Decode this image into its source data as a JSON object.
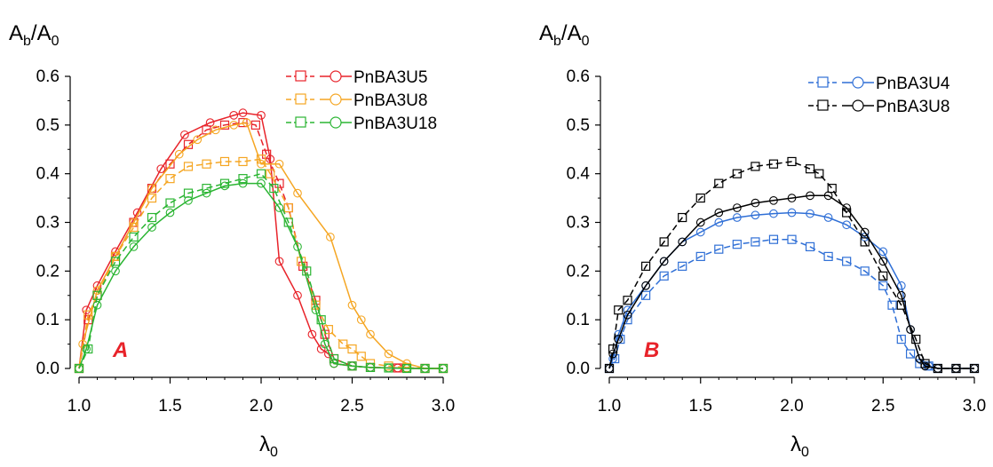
{
  "figure": {
    "panels": [
      "A",
      "B"
    ]
  },
  "chart_data": [
    {
      "type": "line",
      "panel_label": "A",
      "panel_label_color": "#e8232a",
      "ylabel": "A_b/A_0",
      "ylabel_main": "A",
      "ylabel_sub": "b",
      "ylabel_denominator": "A",
      "ylabel_denominator_sub": "0",
      "xlabel": "λ_0",
      "xlabel_main": "λ",
      "xlabel_sub": "0",
      "xlim": [
        1.0,
        3.0
      ],
      "ylim": [
        0.0,
        0.6
      ],
      "xticks": [
        "1.0",
        "1.5",
        "2.0",
        "2.5",
        "3.0"
      ],
      "yticks": [
        "0.0",
        "0.1",
        "0.2",
        "0.3",
        "0.4",
        "0.5",
        "0.6"
      ],
      "grid": false,
      "legend_position": "top-right",
      "series": [
        {
          "name": "PnBA3U5",
          "color": "#e8232a",
          "solid": {
            "x": [
              1.0,
              1.04,
              1.1,
              1.2,
              1.32,
              1.45,
              1.58,
              1.72,
              1.85,
              1.9,
              2.0,
              2.05,
              2.1,
              2.2,
              2.28,
              2.33,
              2.37,
              2.4,
              2.5,
              2.6,
              2.75,
              2.9,
              3.0
            ],
            "y": [
              0.0,
              0.12,
              0.17,
              0.24,
              0.32,
              0.41,
              0.48,
              0.505,
              0.52,
              0.525,
              0.52,
              0.43,
              0.22,
              0.15,
              0.07,
              0.04,
              0.03,
              0.01,
              0.005,
              0.002,
              0.001,
              0.0,
              0.0
            ]
          },
          "dashed": {
            "x": [
              1.0,
              1.05,
              1.1,
              1.2,
              1.3,
              1.4,
              1.5,
              1.6,
              1.7,
              1.8,
              1.9,
              1.97,
              2.03,
              2.1,
              2.15,
              2.23,
              2.3,
              2.35,
              2.4,
              2.5,
              2.6,
              2.75,
              2.9,
              3.0
            ],
            "y": [
              0.0,
              0.1,
              0.15,
              0.23,
              0.3,
              0.37,
              0.42,
              0.46,
              0.49,
              0.5,
              0.505,
              0.5,
              0.44,
              0.38,
              0.33,
              0.21,
              0.14,
              0.07,
              0.02,
              0.005,
              0.002,
              0.001,
              0.0,
              0.0
            ]
          }
        },
        {
          "name": "PnBA3U8",
          "color": "#f5a623",
          "solid": {
            "x": [
              1.0,
              1.02,
              1.1,
              1.2,
              1.3,
              1.4,
              1.55,
              1.65,
              1.75,
              1.85,
              1.92,
              2.0,
              2.1,
              2.2,
              2.38,
              2.5,
              2.55,
              2.6,
              2.7,
              2.8,
              2.9,
              3.0
            ],
            "y": [
              0.0,
              0.05,
              0.16,
              0.23,
              0.3,
              0.37,
              0.44,
              0.47,
              0.49,
              0.5,
              0.505,
              0.42,
              0.42,
              0.36,
              0.27,
              0.13,
              0.1,
              0.07,
              0.03,
              0.01,
              0.0,
              0.0
            ]
          },
          "dashed": {
            "x": [
              1.0,
              1.05,
              1.1,
              1.2,
              1.3,
              1.4,
              1.5,
              1.6,
              1.7,
              1.8,
              1.9,
              2.0,
              2.05,
              2.15,
              2.22,
              2.3,
              2.37,
              2.45,
              2.5,
              2.55,
              2.6,
              2.7,
              2.8,
              2.9,
              3.0
            ],
            "y": [
              0.0,
              0.11,
              0.15,
              0.23,
              0.29,
              0.35,
              0.39,
              0.415,
              0.42,
              0.425,
              0.425,
              0.43,
              0.4,
              0.33,
              0.22,
              0.13,
              0.08,
              0.05,
              0.04,
              0.025,
              0.01,
              0.005,
              0.002,
              0.0,
              0.0
            ]
          }
        },
        {
          "name": "PnBA3U18",
          "color": "#2bb533",
          "solid": {
            "x": [
              1.0,
              1.04,
              1.1,
              1.2,
              1.3,
              1.4,
              1.5,
              1.6,
              1.7,
              1.8,
              1.9,
              2.0,
              2.1,
              2.2,
              2.3,
              2.35,
              2.4,
              2.5,
              2.6,
              2.7,
              2.8,
              2.9,
              3.0
            ],
            "y": [
              0.0,
              0.04,
              0.13,
              0.2,
              0.25,
              0.29,
              0.32,
              0.345,
              0.36,
              0.375,
              0.38,
              0.38,
              0.33,
              0.25,
              0.12,
              0.05,
              0.01,
              0.005,
              0.002,
              0.001,
              0.0,
              0.0,
              0.0
            ]
          },
          "dashed": {
            "x": [
              1.0,
              1.05,
              1.1,
              1.2,
              1.3,
              1.4,
              1.5,
              1.6,
              1.7,
              1.8,
              1.9,
              2.0,
              2.07,
              2.15,
              2.25,
              2.33,
              2.4,
              2.5,
              2.6,
              2.7,
              2.8,
              2.9,
              3.0
            ],
            "y": [
              0.0,
              0.04,
              0.15,
              0.22,
              0.27,
              0.31,
              0.34,
              0.36,
              0.37,
              0.38,
              0.39,
              0.4,
              0.37,
              0.3,
              0.2,
              0.1,
              0.02,
              0.005,
              0.002,
              0.001,
              0.0,
              0.0,
              0.0
            ]
          }
        }
      ]
    },
    {
      "type": "line",
      "panel_label": "B",
      "panel_label_color": "#e8232a",
      "ylabel": "A_b/A_0",
      "ylabel_main": "A",
      "ylabel_sub": "b",
      "ylabel_denominator": "A",
      "ylabel_denominator_sub": "0",
      "xlabel": "λ_0",
      "xlabel_main": "λ",
      "xlabel_sub": "0",
      "xlim": [
        1.0,
        3.0
      ],
      "ylim": [
        0.0,
        0.6
      ],
      "xticks": [
        "1.0",
        "1.5",
        "2.0",
        "2.5",
        "3.0"
      ],
      "yticks": [
        "0.0",
        "0.1",
        "0.2",
        "0.3",
        "0.4",
        "0.5",
        "0.6"
      ],
      "grid": false,
      "legend_position": "top-right",
      "series": [
        {
          "name": "PnBA3U4",
          "color": "#2f6fd6",
          "solid": {
            "x": [
              1.0,
              1.02,
              1.05,
              1.1,
              1.2,
              1.3,
              1.4,
              1.5,
              1.6,
              1.7,
              1.8,
              1.9,
              2.0,
              2.1,
              2.2,
              2.3,
              2.4,
              2.5,
              2.6,
              2.65,
              2.7,
              2.75,
              2.8,
              2.9,
              3.0
            ],
            "y": [
              0.0,
              0.02,
              0.07,
              0.12,
              0.17,
              0.22,
              0.26,
              0.28,
              0.3,
              0.31,
              0.315,
              0.318,
              0.32,
              0.318,
              0.31,
              0.295,
              0.27,
              0.24,
              0.17,
              0.08,
              0.02,
              0.005,
              0.0,
              0.0,
              0.0
            ]
          },
          "dashed": {
            "x": [
              1.0,
              1.03,
              1.06,
              1.1,
              1.2,
              1.3,
              1.4,
              1.5,
              1.6,
              1.7,
              1.8,
              1.9,
              2.0,
              2.1,
              2.2,
              2.3,
              2.4,
              2.5,
              2.55,
              2.6,
              2.65,
              2.7,
              2.75,
              2.8,
              2.9,
              3.0
            ],
            "y": [
              0.0,
              0.02,
              0.06,
              0.1,
              0.15,
              0.19,
              0.21,
              0.23,
              0.245,
              0.255,
              0.26,
              0.265,
              0.265,
              0.25,
              0.23,
              0.22,
              0.2,
              0.17,
              0.13,
              0.06,
              0.03,
              0.01,
              0.005,
              0.0,
              0.0,
              0.0
            ]
          }
        },
        {
          "name": "PnBA3U8",
          "color": "#000000",
          "solid": {
            "x": [
              1.0,
              1.02,
              1.05,
              1.1,
              1.2,
              1.3,
              1.4,
              1.5,
              1.6,
              1.7,
              1.8,
              1.9,
              2.0,
              2.1,
              2.2,
              2.3,
              2.4,
              2.5,
              2.6,
              2.65,
              2.7,
              2.73,
              2.8,
              2.9,
              3.0
            ],
            "y": [
              0.0,
              0.03,
              0.06,
              0.11,
              0.17,
              0.22,
              0.26,
              0.3,
              0.32,
              0.33,
              0.34,
              0.345,
              0.35,
              0.355,
              0.355,
              0.33,
              0.28,
              0.22,
              0.15,
              0.08,
              0.02,
              0.005,
              0.0,
              0.0,
              0.0
            ]
          },
          "dashed": {
            "x": [
              1.0,
              1.02,
              1.05,
              1.1,
              1.2,
              1.3,
              1.4,
              1.5,
              1.6,
              1.7,
              1.8,
              1.9,
              2.0,
              2.1,
              2.15,
              2.22,
              2.3,
              2.4,
              2.5,
              2.6,
              2.68,
              2.73,
              2.8,
              2.9,
              3.0
            ],
            "y": [
              0.0,
              0.04,
              0.12,
              0.14,
              0.21,
              0.26,
              0.31,
              0.35,
              0.38,
              0.4,
              0.415,
              0.42,
              0.425,
              0.41,
              0.4,
              0.37,
              0.32,
              0.26,
              0.19,
              0.13,
              0.06,
              0.01,
              0.0,
              0.0,
              0.0
            ]
          }
        }
      ]
    }
  ]
}
